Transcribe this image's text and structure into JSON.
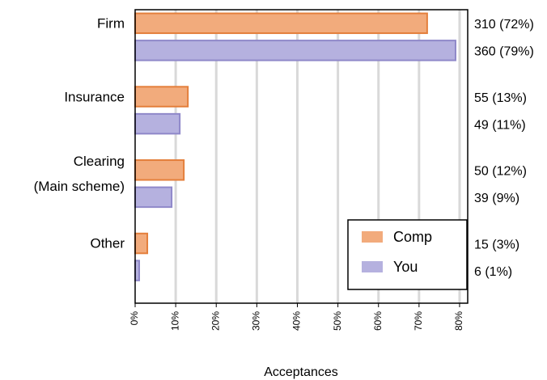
{
  "chart_data": {
    "type": "barh",
    "xlabel": "Acceptances",
    "categories": [
      "Firm",
      "Insurance",
      "Clearing\n(Main scheme)",
      "Other"
    ],
    "series": [
      {
        "name": "Comp",
        "color": "#f2ab7c",
        "edge": "#e47f3c",
        "values": [
          72,
          13,
          12,
          3
        ],
        "value_labels": [
          "310 (72%)",
          "55 (13%)",
          "50 (12%)",
          "15 (3%)"
        ]
      },
      {
        "name": "You",
        "color": "#b5b1df",
        "edge": "#8f88c9",
        "values": [
          79,
          11,
          9,
          1
        ],
        "value_labels": [
          "360 (79%)",
          "49 (11%)",
          "39 (9%)",
          "6 (1%)"
        ]
      }
    ],
    "value_label_color": "#d0173a",
    "xlim": [
      0,
      82
    ],
    "xticks": [
      {
        "value": 0,
        "label": "0%"
      },
      {
        "value": 10,
        "label": "10%"
      },
      {
        "value": 20,
        "label": "20%"
      },
      {
        "value": 30,
        "label": "30%"
      },
      {
        "value": 40,
        "label": "40%"
      },
      {
        "value": 50,
        "label": "50%"
      },
      {
        "value": 60,
        "label": "60%"
      },
      {
        "value": 70,
        "label": "70%"
      },
      {
        "value": 80,
        "label": "80%"
      }
    ],
    "grid": true,
    "legend": "lower right"
  }
}
